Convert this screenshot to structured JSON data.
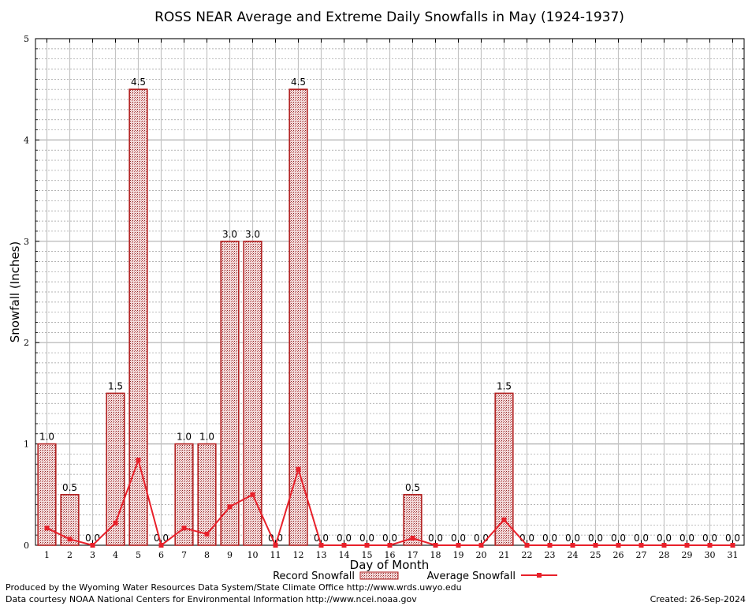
{
  "chart_data": {
    "type": "bar",
    "title": "ROSS NEAR Average and Extreme Daily Snowfalls in May (1924-1937)",
    "xlabel": "Day of Month",
    "ylabel": "Snowfall (Inches)",
    "ylim": [
      0,
      5
    ],
    "yticks": [
      "0",
      "1",
      "2",
      "3",
      "4",
      "5"
    ],
    "categories": [
      "1",
      "2",
      "3",
      "4",
      "5",
      "6",
      "7",
      "8",
      "9",
      "10",
      "11",
      "12",
      "13",
      "14",
      "15",
      "16",
      "17",
      "18",
      "19",
      "20",
      "21",
      "22",
      "23",
      "24",
      "25",
      "26",
      "27",
      "28",
      "29",
      "30",
      "31"
    ],
    "series": [
      {
        "name": "Record Snowfall",
        "kind": "bar",
        "color": "#b22222",
        "values": [
          1.0,
          0.5,
          0.0,
          1.5,
          4.5,
          0.0,
          1.0,
          1.0,
          3.0,
          3.0,
          0.0,
          4.5,
          0.0,
          0.0,
          0.0,
          0.0,
          0.5,
          0.0,
          0.0,
          0.0,
          1.5,
          0.0,
          0.0,
          0.0,
          0.0,
          0.0,
          0.0,
          0.0,
          0.0,
          0.0,
          0.0
        ],
        "labels": [
          "1.0",
          "0.5",
          "0.0",
          "1.5",
          "4.5",
          "0.0",
          "1.0",
          "1.0",
          "3.0",
          "3.0",
          "0.0",
          "4.5",
          "0.0",
          "0.0",
          "0.0",
          "0.0",
          "0.5",
          "0.0",
          "0.0",
          "0.0",
          "1.5",
          "0.0",
          "0.0",
          "0.0",
          "0.0",
          "0.0",
          "0.0",
          "0.0",
          "0.0",
          "0.0",
          "0.0"
        ]
      },
      {
        "name": "Average Snowfall",
        "kind": "line",
        "color": "#e8202a",
        "values": [
          0.17,
          0.06,
          0.0,
          0.22,
          0.84,
          0.0,
          0.17,
          0.11,
          0.38,
          0.5,
          0.0,
          0.75,
          0.0,
          0.0,
          0.0,
          0.0,
          0.07,
          0.0,
          0.0,
          0.0,
          0.25,
          0.0,
          0.0,
          0.0,
          0.0,
          0.0,
          0.0,
          0.0,
          0.0,
          0.0,
          0.0
        ]
      }
    ],
    "legend": "bottom-center"
  },
  "footer": {
    "produced_by": "Produced by the Wyoming Water Resources Data System/State Climate Office http://www.wrds.uwyo.edu",
    "courtesy": "Data courtesy NOAA National Centers for Environmental Information http://www.ncei.noaa.gov",
    "created": "Created:  26-Sep-2024"
  }
}
